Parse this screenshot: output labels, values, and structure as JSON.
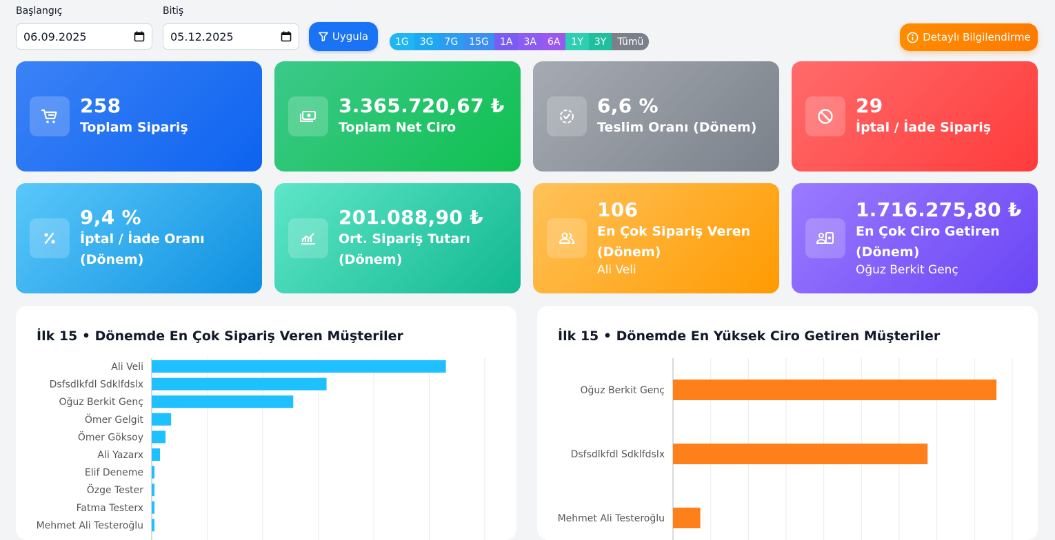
{
  "filters": {
    "start_label": "Başlangıç",
    "start_value": "06.09.2025",
    "end_label": "Bitiş",
    "end_value": "05.12.2025",
    "apply_label": "Uygula"
  },
  "ranges": [
    {
      "label": "1G",
      "color": "#1fb6f3"
    },
    {
      "label": "3G",
      "color": "#1ea8f0"
    },
    {
      "label": "7G",
      "color": "#2b9cf0"
    },
    {
      "label": "15G",
      "color": "#3b8ff0"
    },
    {
      "label": "1A",
      "color": "#7a5cf0"
    },
    {
      "label": "3A",
      "color": "#8a5cf2"
    },
    {
      "label": "6A",
      "color": "#9a58f0"
    },
    {
      "label": "1Y",
      "color": "#2ecfb0"
    },
    {
      "label": "3Y",
      "color": "#1fbfa0"
    },
    {
      "label": "Tümü",
      "color": "#7b808a"
    }
  ],
  "info_button": "Detaylı Bilgilendirme",
  "cards": [
    {
      "value": "258",
      "title": "Toplam Sipariş",
      "title2": "",
      "sub": "",
      "icon": "cart-icon"
    },
    {
      "value": "3.365.720,67 ₺",
      "title": "Toplam Net Ciro",
      "title2": "",
      "sub": "",
      "icon": "money-icon"
    },
    {
      "value": "6,6 %",
      "title": "Teslim Oranı (Dönem)",
      "title2": "",
      "sub": "",
      "icon": "check-circle-icon"
    },
    {
      "value": "29",
      "title": "İptal / İade Sipariş",
      "title2": "",
      "sub": "",
      "icon": "ban-icon"
    },
    {
      "value": "9,4 %",
      "title": "İptal / İade Oranı",
      "title2": "(Dönem)",
      "sub": "",
      "icon": "percent-icon"
    },
    {
      "value": "201.088,90 ₺",
      "title": "Ort. Sipariş Tutarı",
      "title2": "(Dönem)",
      "sub": "",
      "icon": "trend-icon"
    },
    {
      "value": "106",
      "title": "En Çok Sipariş Veren",
      "title2": "(Dönem)",
      "sub": "Ali Veli",
      "icon": "users-icon"
    },
    {
      "value": "1.716.275,80 ₺",
      "title": "En Çok Ciro Getiren",
      "title2": "(Dönem)",
      "sub": "Oğuz Berkit Genç",
      "icon": "user-money-icon"
    }
  ],
  "chart_data": [
    {
      "type": "bar",
      "orientation": "horizontal",
      "title": "İlk 15 • Dönemde En Çok Sipariş Veren Müşteriler",
      "color": "#1ec0ff",
      "categories": [
        "Ali Veli",
        "Dsfsdlkfdl Sdklfdslx",
        "Oğuz Berkit Genç",
        "Ömer Gelgit",
        "Ömer Göksoy",
        "Ali Yazarx",
        "Elif Deneme",
        "Özge Tester",
        "Fatma Testerx",
        "Mehmet Ali Testeroğlu"
      ],
      "values": [
        106,
        63,
        51,
        7,
        5,
        3,
        1,
        1,
        1,
        1
      ],
      "xlim": [
        0,
        120
      ],
      "grid": true
    },
    {
      "type": "bar",
      "orientation": "horizontal",
      "title": "İlk 15 • Dönemde En Yüksek Ciro Getiren Müşteriler",
      "color": "#ff7f1a",
      "categories": [
        "Oğuz Berkit Genç",
        "Dsfsdlkfdl Sdklfdslx",
        "Mehmet Ali Testeroğlu"
      ],
      "values": [
        1716275.8,
        1351000,
        145000
      ],
      "xlim": [
        0,
        1800000
      ],
      "grid": true
    }
  ]
}
